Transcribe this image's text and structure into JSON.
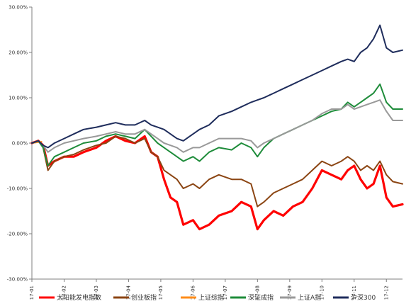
{
  "chart_data": {
    "type": "line",
    "title": "",
    "xlabel": "",
    "ylabel": "",
    "ylim": [
      -30,
      30
    ],
    "y_ticks": [
      30,
      20,
      10,
      0,
      -10,
      -20,
      -30
    ],
    "y_tick_labels": [
      "30.00%",
      "20.00%",
      "10.00%",
      "0.00%",
      "-10.00%",
      "-20.00%",
      "-30.00%"
    ],
    "x_ticks": [
      "17-01",
      "17-02",
      "17-03",
      "17-04",
      "17-05",
      "17-06",
      "17-07",
      "17-08",
      "17-09",
      "17-10",
      "17-11",
      "17-12"
    ],
    "grid": false,
    "legend_position": "bottom",
    "series": [
      {
        "name": "太阳能发电指数",
        "color": "#ff0000",
        "x": [
          0,
          0.2,
          0.35,
          0.5,
          0.7,
          1.0,
          1.3,
          1.6,
          2.0,
          2.3,
          2.6,
          2.9,
          3.2,
          3.5,
          3.7,
          3.9,
          4.1,
          4.3,
          4.5,
          4.7,
          5.0,
          5.2,
          5.5,
          5.8,
          6.2,
          6.5,
          6.8,
          7.0,
          7.2,
          7.5,
          7.8,
          8.1,
          8.4,
          8.7,
          9.0,
          9.3,
          9.6,
          9.8,
          10.0,
          10.2,
          10.4,
          10.6,
          10.8,
          11.0,
          11.2,
          11.5
        ],
        "y": [
          0,
          0.5,
          -0.5,
          -5,
          -4,
          -3,
          -3,
          -2,
          -1,
          0.5,
          1.5,
          0.5,
          0,
          1.5,
          -2,
          -3,
          -8,
          -12,
          -13,
          -18,
          -17,
          -19,
          -18,
          -16,
          -15,
          -13,
          -14,
          -19,
          -17,
          -15,
          -16,
          -14,
          -13,
          -10,
          -6,
          -7,
          -8,
          -6,
          -5,
          -8,
          -10,
          -9,
          -5,
          -12,
          -14,
          -13.5
        ]
      },
      {
        "name": "创业板指",
        "color": "#8b4513",
        "x": [
          0,
          0.2,
          0.35,
          0.5,
          0.7,
          1.0,
          1.3,
          1.6,
          2.0,
          2.3,
          2.6,
          2.9,
          3.2,
          3.5,
          3.7,
          3.9,
          4.1,
          4.3,
          4.5,
          4.7,
          5.0,
          5.2,
          5.5,
          5.8,
          6.2,
          6.5,
          6.8,
          7.0,
          7.2,
          7.5,
          7.8,
          8.1,
          8.4,
          8.7,
          9.0,
          9.3,
          9.6,
          9.8,
          10.0,
          10.2,
          10.4,
          10.6,
          10.8,
          11.0,
          11.2,
          11.5
        ],
        "y": [
          0,
          0.5,
          -1,
          -6,
          -4,
          -3,
          -2.5,
          -1.5,
          -0.5,
          0,
          1.5,
          1,
          0,
          1,
          -2,
          -3,
          -6,
          -7,
          -8,
          -10,
          -9,
          -10,
          -8,
          -7,
          -8,
          -8,
          -9,
          -14,
          -13,
          -11,
          -10,
          -9,
          -8,
          -6,
          -4,
          -5,
          -4,
          -3,
          -4,
          -6,
          -5,
          -6,
          -4,
          -7,
          -8.5,
          -9
        ]
      },
      {
        "name": "上证综指",
        "color": "#ff8c1a",
        "x": [
          0,
          0.3
        ],
        "y": [
          0,
          0.3
        ]
      },
      {
        "name": "深证成指",
        "color": "#1e8c3a",
        "x": [
          0,
          0.2,
          0.35,
          0.5,
          0.7,
          1.0,
          1.3,
          1.6,
          2.0,
          2.3,
          2.6,
          2.9,
          3.2,
          3.5,
          3.7,
          3.9,
          4.1,
          4.3,
          4.5,
          4.7,
          5.0,
          5.2,
          5.5,
          5.8,
          6.2,
          6.5,
          6.8,
          7.0,
          7.2,
          7.5,
          7.8,
          8.1,
          8.4,
          8.7,
          9.0,
          9.3,
          9.6,
          9.8,
          10.0,
          10.2,
          10.4,
          10.6,
          10.8,
          11.0,
          11.2,
          11.5
        ],
        "y": [
          0,
          0.5,
          -1,
          -5,
          -3,
          -2,
          -1,
          0,
          0.5,
          1.5,
          2,
          1.5,
          1,
          3,
          1.5,
          0,
          -1,
          -2,
          -3,
          -4,
          -3,
          -4,
          -2,
          -1,
          -1.5,
          0,
          -1,
          -3,
          -1,
          1,
          2,
          3,
          4,
          5,
          6,
          7,
          7.5,
          9,
          8,
          9,
          10,
          11,
          13,
          9,
          7.5,
          7.5
        ]
      },
      {
        "name": "上证A指",
        "color": "#999999",
        "x": [
          0,
          0.2,
          0.35,
          0.5,
          0.7,
          1.0,
          1.3,
          1.6,
          2.0,
          2.3,
          2.6,
          2.9,
          3.2,
          3.5,
          3.7,
          3.9,
          4.1,
          4.3,
          4.5,
          4.7,
          5.0,
          5.2,
          5.5,
          5.8,
          6.2,
          6.5,
          6.8,
          7.0,
          7.2,
          7.5,
          7.8,
          8.1,
          8.4,
          8.7,
          9.0,
          9.3,
          9.6,
          9.8,
          10.0,
          10.2,
          10.4,
          10.6,
          10.8,
          11.0,
          11.2,
          11.5
        ],
        "y": [
          0,
          0.5,
          -0.5,
          -2,
          -1,
          0,
          0.5,
          1,
          1.5,
          2,
          2.5,
          2,
          2,
          3,
          2,
          1,
          0,
          -0.5,
          -1,
          -2,
          -1,
          -1,
          0,
          1,
          1,
          1,
          0.5,
          -1,
          0,
          1,
          2,
          3,
          4,
          5,
          6.5,
          7.5,
          7.5,
          8.5,
          7.5,
          8,
          8.5,
          9,
          9.5,
          7,
          5,
          5
        ]
      },
      {
        "name": "沪深300",
        "color": "#1f2d5c",
        "x": [
          0,
          0.2,
          0.35,
          0.5,
          0.7,
          1.0,
          1.3,
          1.6,
          2.0,
          2.3,
          2.6,
          2.9,
          3.2,
          3.5,
          3.7,
          3.9,
          4.1,
          4.3,
          4.5,
          4.7,
          5.0,
          5.2,
          5.5,
          5.8,
          6.2,
          6.5,
          6.8,
          7.0,
          7.2,
          7.5,
          7.8,
          8.1,
          8.4,
          8.7,
          9.0,
          9.3,
          9.6,
          9.8,
          10.0,
          10.2,
          10.4,
          10.6,
          10.8,
          11.0,
          11.2,
          11.5
        ],
        "y": [
          0,
          0.5,
          -0.5,
          -1,
          0,
          1,
          2,
          3,
          3.5,
          4,
          4.5,
          4,
          4,
          5,
          4,
          3.5,
          3,
          2,
          1,
          0.5,
          2,
          3,
          4,
          6,
          7,
          8,
          9,
          9.5,
          10,
          11,
          12,
          13,
          14,
          15,
          16,
          17,
          18,
          18.5,
          18,
          20,
          21,
          23,
          26,
          21,
          20,
          20.5
        ]
      }
    ]
  }
}
